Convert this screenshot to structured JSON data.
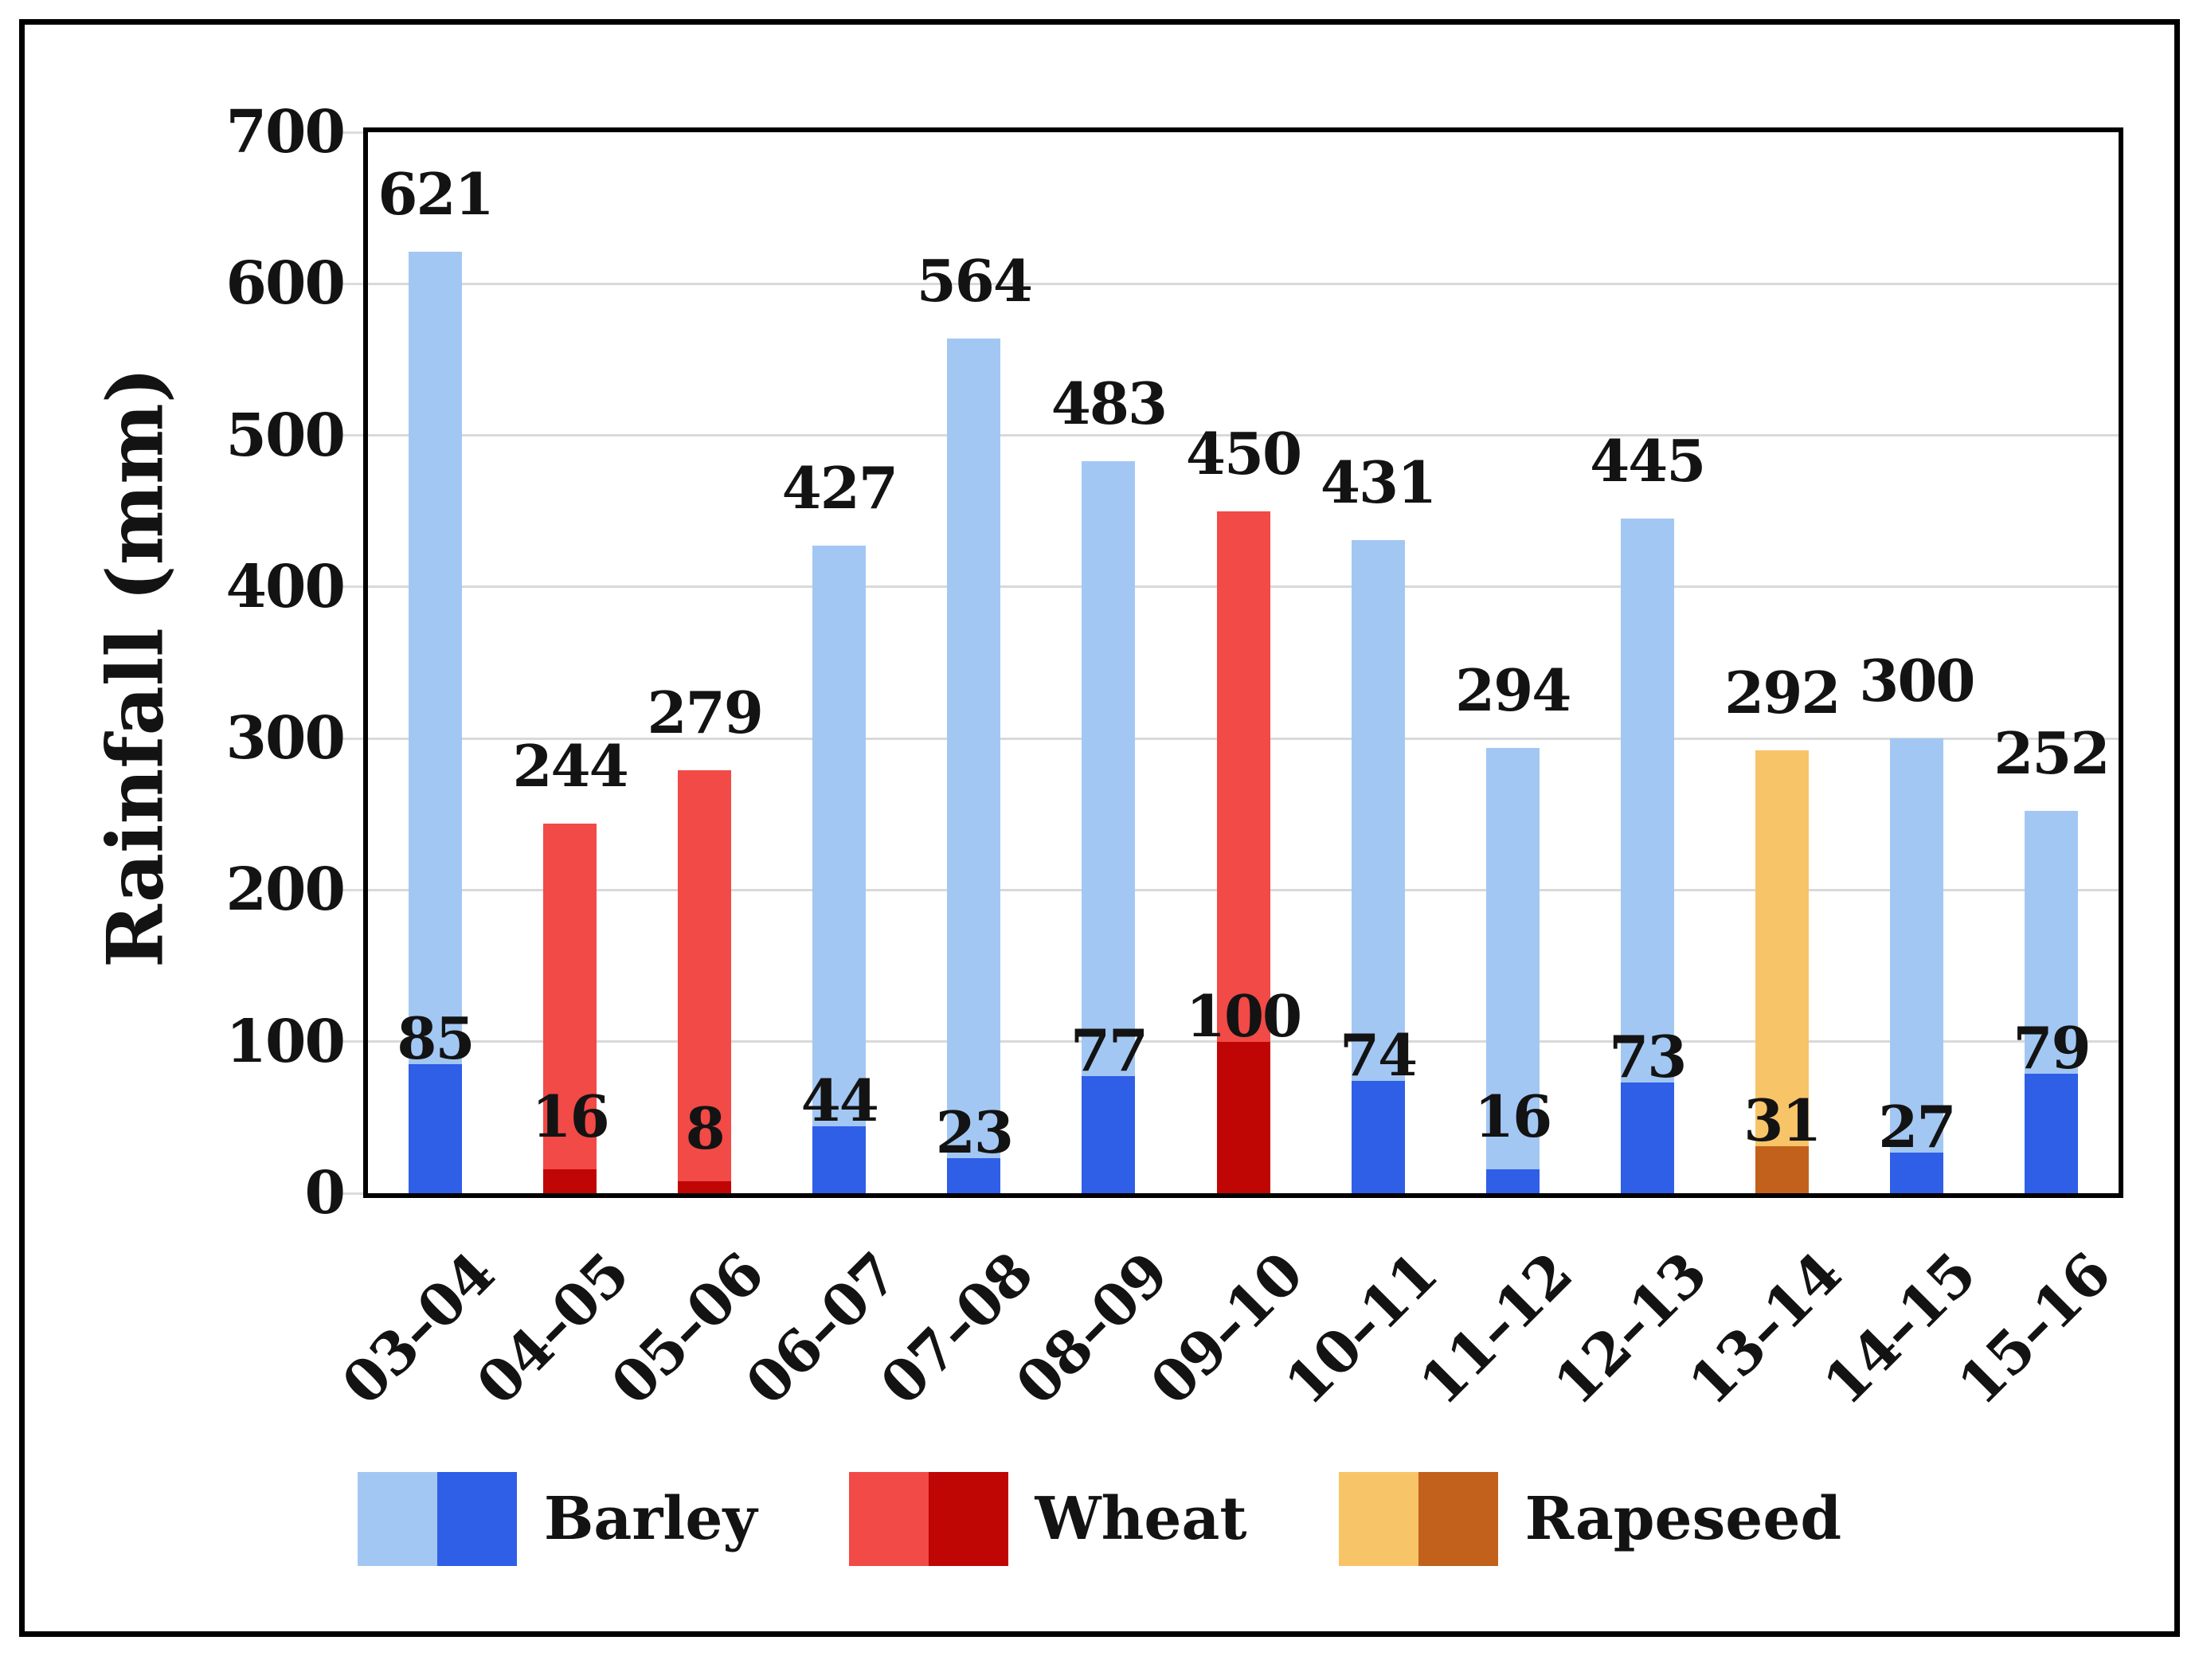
{
  "colors": {
    "background": "#FFFFFF",
    "axis": "#000000",
    "gridline": "#D9D9D9",
    "text": "#131313"
  },
  "chart_data": {
    "type": "bar",
    "stacked": true,
    "title": "",
    "xlabel": "",
    "ylabel": "Rainfall (mm)",
    "ylim": [
      0,
      700
    ],
    "ytick_step": 100,
    "yticks": [
      0,
      100,
      200,
      300,
      400,
      500,
      600,
      700
    ],
    "grid": true,
    "legend_position": "bottom",
    "categories": [
      "03–04",
      "04–05",
      "05–06",
      "06–07",
      "07–08",
      "08–09",
      "09–10",
      "10–11",
      "11–12",
      "12–13",
      "13–14",
      "14–15",
      "15–16"
    ],
    "series": [
      {
        "name": "total-rainfall",
        "values": [
          621,
          244,
          279,
          427,
          564,
          483,
          450,
          431,
          294,
          445,
          292,
          300,
          252
        ]
      },
      {
        "name": "base-segment",
        "values": [
          85,
          16,
          8,
          44,
          23,
          77,
          100,
          74,
          16,
          73,
          31,
          27,
          79
        ]
      }
    ],
    "crop_by_category": [
      "Barley",
      "Wheat",
      "Wheat",
      "Barley",
      "Barley",
      "Barley",
      "Wheat",
      "Barley",
      "Barley",
      "Barley",
      "Rapeseed",
      "Barley",
      "Barley"
    ],
    "crops": {
      "Barley": {
        "light": "#A3C7F3",
        "dark": "#2F5EE7"
      },
      "Wheat": {
        "light": "#F14A47",
        "dark": "#C00505"
      },
      "Rapeseed": {
        "light": "#F8C468",
        "dark": "#C2611B"
      }
    },
    "legend": [
      {
        "label": "Barley"
      },
      {
        "label": "Wheat"
      },
      {
        "label": "Rapeseed"
      }
    ]
  }
}
